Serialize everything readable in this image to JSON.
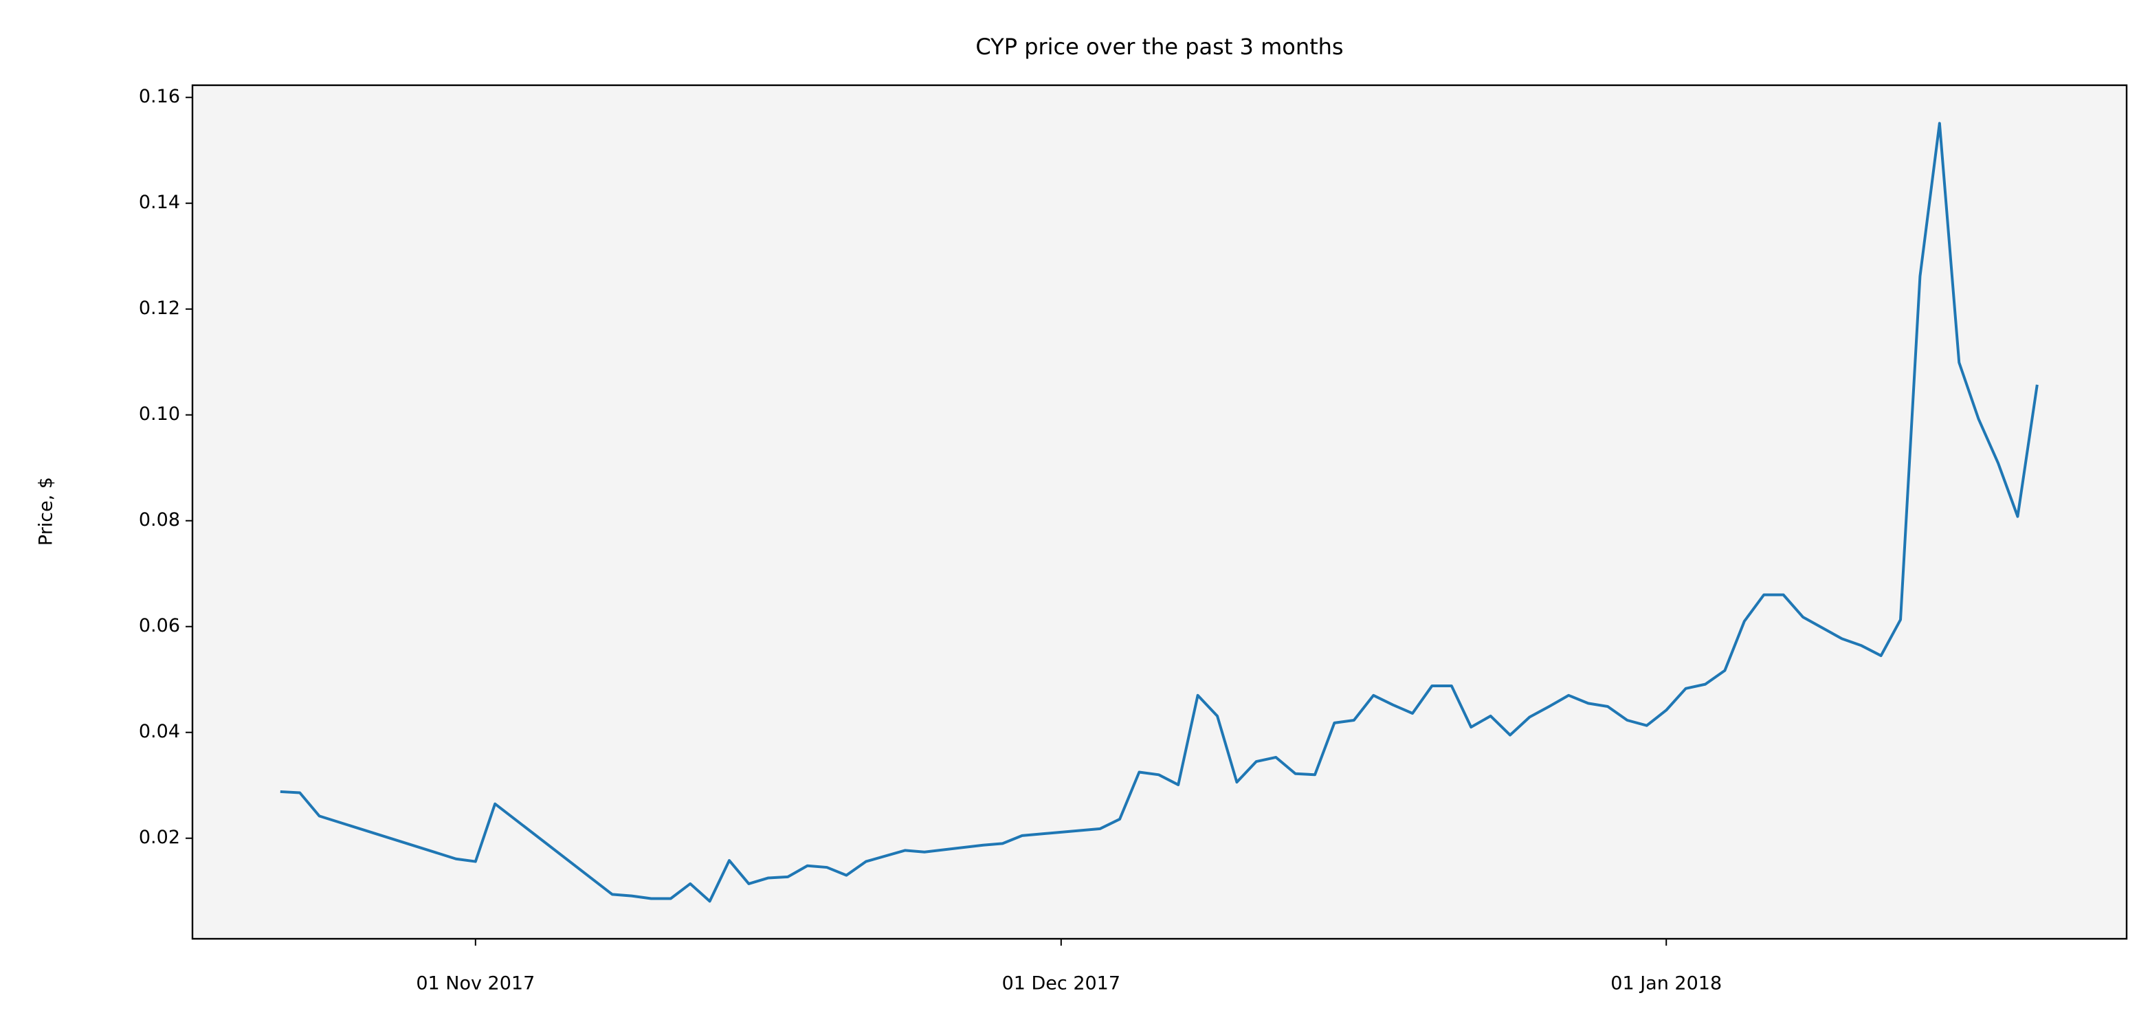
{
  "chart_data": {
    "type": "line",
    "title": "CYP price over the past 3 months",
    "y_label": "Price, $",
    "x": [
      "2017-10-22",
      "2017-10-23",
      "2017-10-24",
      "2017-10-31",
      "2017-11-01",
      "2017-11-02",
      "2017-11-08",
      "2017-11-09",
      "2017-11-10",
      "2017-11-11",
      "2017-11-12",
      "2017-11-13",
      "2017-11-14",
      "2017-11-15",
      "2017-11-16",
      "2017-11-17",
      "2017-11-18",
      "2017-11-19",
      "2017-11-20",
      "2017-11-21",
      "2017-11-23",
      "2017-11-24",
      "2017-11-27",
      "2017-11-28",
      "2017-11-29",
      "2017-12-03",
      "2017-12-04",
      "2017-12-05",
      "2017-12-06",
      "2017-12-07",
      "2017-12-08",
      "2017-12-09",
      "2017-12-10",
      "2017-12-11",
      "2017-12-12",
      "2017-12-13",
      "2017-12-14",
      "2017-12-15",
      "2017-12-16",
      "2017-12-17",
      "2017-12-18",
      "2017-12-19",
      "2017-12-20",
      "2017-12-21",
      "2017-12-22",
      "2017-12-23",
      "2017-12-24",
      "2017-12-25",
      "2017-12-26",
      "2017-12-27",
      "2017-12-28",
      "2017-12-29",
      "2017-12-30",
      "2017-12-31",
      "2018-01-01",
      "2018-01-02",
      "2018-01-03",
      "2018-01-04",
      "2018-01-05",
      "2018-01-06",
      "2018-01-07",
      "2018-01-08",
      "2018-01-10",
      "2018-01-11",
      "2018-01-12",
      "2018-01-13",
      "2018-01-14",
      "2018-01-15",
      "2018-01-16",
      "2018-01-17",
      "2018-01-18",
      "2018-01-19",
      "2018-01-20"
    ],
    "series": [
      {
        "name": "CYP",
        "color": "#1f77b4",
        "values": [
          0.0288,
          0.0286,
          0.0242,
          0.0161,
          0.0156,
          0.0265,
          0.0094,
          0.0091,
          0.0086,
          0.0086,
          0.0114,
          0.0081,
          0.0158,
          0.0114,
          0.0125,
          0.0127,
          0.0148,
          0.0145,
          0.013,
          0.0156,
          0.0177,
          0.0174,
          0.0187,
          0.019,
          0.0205,
          0.0218,
          0.0236,
          0.0325,
          0.032,
          0.0301,
          0.047,
          0.0431,
          0.0306,
          0.0345,
          0.0353,
          0.0322,
          0.032,
          0.0418,
          0.0423,
          0.047,
          0.0452,
          0.0436,
          0.0488,
          0.0488,
          0.041,
          0.0431,
          0.0395,
          0.0429,
          0.0449,
          0.047,
          0.0455,
          0.0449,
          0.0423,
          0.0413,
          0.0442,
          0.0483,
          0.0491,
          0.0517,
          0.061,
          0.066,
          0.066,
          0.0618,
          0.0577,
          0.0564,
          0.0545,
          0.0613,
          0.1262,
          0.1551,
          0.1099,
          0.0992,
          0.0909,
          0.0808,
          0.1057
        ]
      }
    ],
    "xlim": [
      "2017-10-17T12:00",
      "2018-01-24T14:00"
    ],
    "xticks": [
      {
        "value": "2017-11-01",
        "label": "01 Nov 2017"
      },
      {
        "value": "2017-12-01",
        "label": "01 Dec 2017"
      },
      {
        "value": "2018-01-01",
        "label": "01 Jan 2018"
      }
    ],
    "ylim": [
      0.001,
      0.1623
    ],
    "yticks": [
      0.02,
      0.04,
      0.06,
      0.08,
      {
        "value": 0.1,
        "label": "0.10"
      },
      0.12,
      0.14,
      0.16
    ],
    "grid": false,
    "background": "#f4f4f4"
  }
}
